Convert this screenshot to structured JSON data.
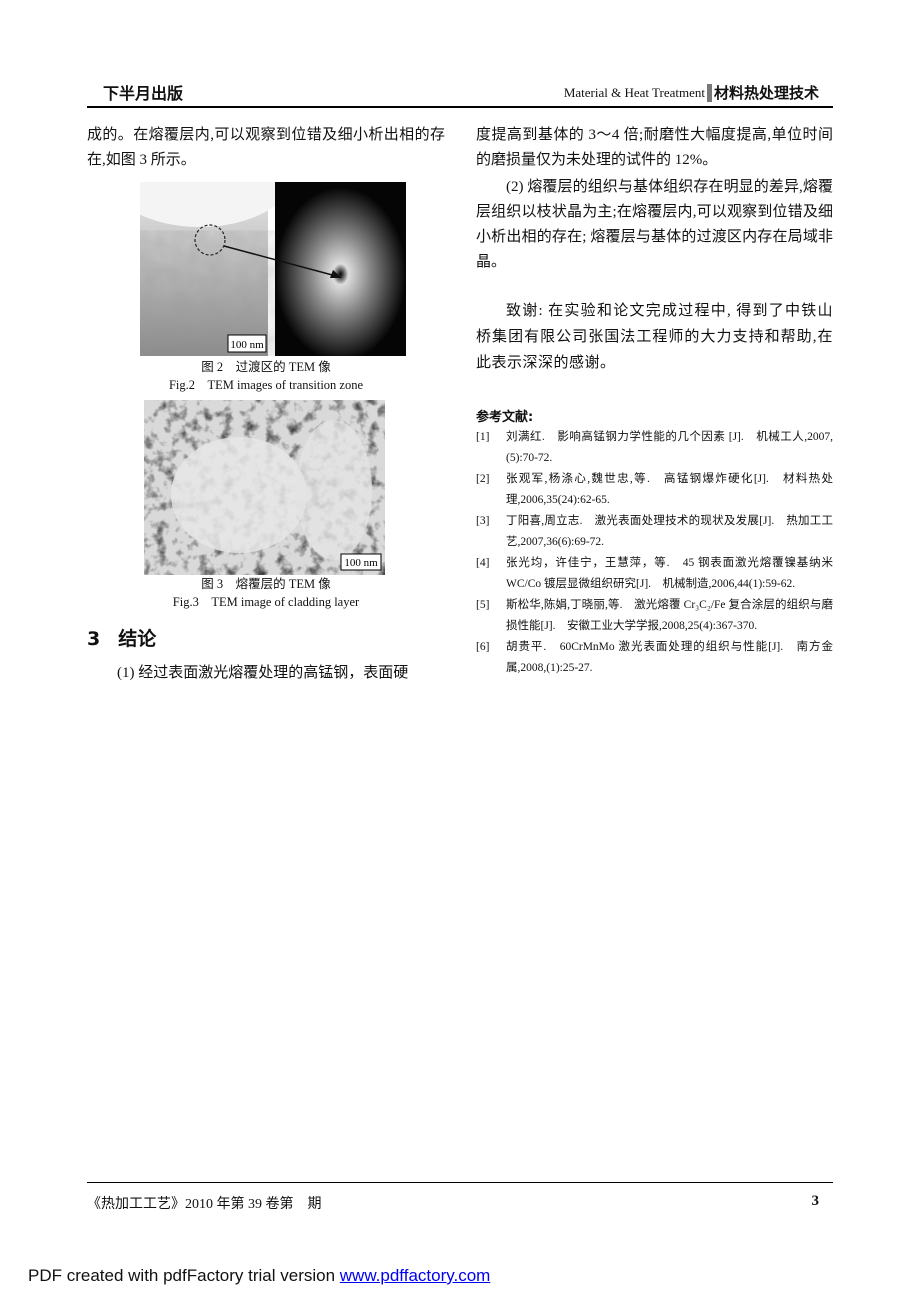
{
  "header": {
    "left": "下半月出版",
    "right_en": "Material & Heat Treatment",
    "right_cn": "材料热处理技术"
  },
  "left_column": {
    "paragraph_1": "成的。在熔覆层内,可以观察到位错及细小析出相的存在,如图 3 所示。",
    "figure_2": {
      "scale_bar": "100 nm",
      "caption_cn": "图 2　过渡区的 TEM 像",
      "caption_en": "Fig.2　TEM images of transition zone"
    },
    "figure_3": {
      "scale_bar": "100 nm",
      "caption_cn": "图 3　熔覆层的 TEM 像",
      "caption_en": "Fig.3　TEM image of cladding layer"
    },
    "section": {
      "number": "3",
      "title": "结论"
    },
    "paragraph_2": "(1) 经过表面激光熔覆处理的高锰钢，表面硬"
  },
  "right_column": {
    "paragraph_1": "度提高到基体的 3～4 倍;耐磨性大幅度提高,单位时间的磨损量仅为未处理的试件的 12%。",
    "paragraph_2": "(2) 熔覆层的组织与基体组织存在明显的差异,熔覆层组织以枝状晶为主;在熔覆层内,可以观察到位错及细小析出相的存在; 熔覆层与基体的过渡区内存在局域非晶。",
    "acknowledgement": "致谢: 在实验和论文完成过程中, 得到了中铁山桥集团有限公司张国法工程师的大力支持和帮助,在此表示深深的感谢。",
    "references_title": "参考文献:",
    "references": [
      {
        "number": "[1]",
        "text": "刘满红.　影响高锰钢力学性能的几个因素 [J].　机械工人,2007,(5):70-72."
      },
      {
        "number": "[2]",
        "text": "张观军,杨涤心,魏世忠,等.　高锰钢爆炸硬化[J].　材料热处理,2006,35(24):62-65."
      },
      {
        "number": "[3]",
        "text": "丁阳喜,周立志.　激光表面处理技术的现状及发展[J].　热加工工艺,2007,36(6):69-72."
      },
      {
        "number": "[4]",
        "text": "张光均，许佳宁，王慧萍，等.　45 钢表面激光熔覆镍基纳米WC/Co 镀层显微组织研究[J].　机械制造,2006,44(1):59-62."
      },
      {
        "number": "[5]",
        "text": "斯松华,陈娟,丁晓丽,等.　激光熔覆 Cr₃C₂/Fe 复合涂层的组织与磨损性能[J].　安徽工业大学学报,2008,25(4):367-370."
      },
      {
        "number": "[6]",
        "text": "胡贵平.　60CrMnMo 激光表面处理的组织与性能[J].　南方金属,2008,(1):25-27."
      }
    ]
  },
  "footer": {
    "journal": "《热加工工艺》2010 年第 39 卷第　期",
    "page_number": "3"
  },
  "watermark": {
    "text": "PDF created with pdfFactory trial version ",
    "link": "www.pdffactory.com"
  }
}
